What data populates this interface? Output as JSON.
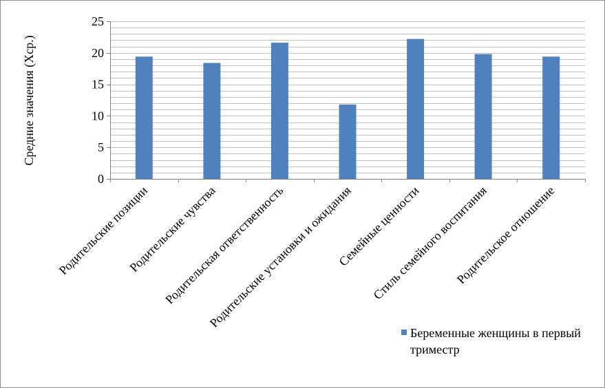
{
  "chart_data": {
    "type": "bar",
    "categories": [
      "Родительские позиции",
      "Родительские чувства",
      "Родительская ответственность",
      "Родительские установки и ожидания",
      "Семейные ценности",
      "Стиль семейного воспитания",
      "Родительское отношение"
    ],
    "series": [
      {
        "name": "Беременные женщины в первый триместр",
        "values": [
          19.4,
          18.4,
          21.6,
          11.8,
          22.2,
          19.8,
          19.4
        ]
      }
    ],
    "title": "",
    "xlabel": "",
    "ylabel": "Средние значения (Хср.)",
    "ylim": [
      0,
      25
    ],
    "yticks": [
      "0",
      "5",
      "10",
      "15",
      "20",
      "25"
    ],
    "grid": true,
    "legend_position": "bottom-right",
    "bar_color": "#4f81bd",
    "grid_color": "#c0c0c0"
  }
}
